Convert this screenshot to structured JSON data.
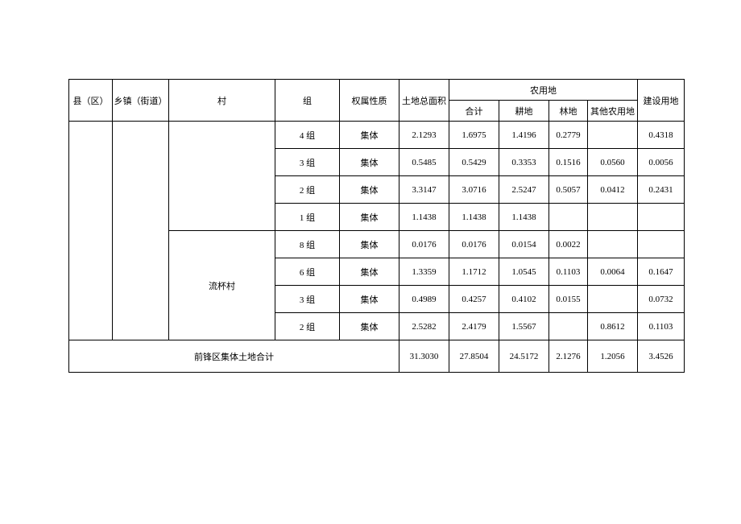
{
  "table": {
    "type": "table",
    "border_color": "#000000",
    "background_color": "#ffffff",
    "text_color": "#000000",
    "font_size": 11,
    "headers": {
      "county": "县（区）",
      "town": "乡镇（街道）",
      "village": "村",
      "group": "组",
      "ownership_nature": "权属性质",
      "total_land_area": "土地总面积",
      "agricultural_land_parent": "农用地",
      "agricultural_subtotal": "合计",
      "farmland": "耕地",
      "forest_land": "林地",
      "other_agricultural": "其他农用地",
      "construction_land": "建设用地"
    },
    "villages": {
      "liubei": "流杯村"
    },
    "rows": [
      {
        "group": "4 组",
        "nature": "集体",
        "total_area": "2.1293",
        "subtotal": "1.6975",
        "farmland": "1.4196",
        "forest": "0.2779",
        "other_ag": "",
        "construction": "0.4318"
      },
      {
        "group": "3 组",
        "nature": "集体",
        "total_area": "0.5485",
        "subtotal": "0.5429",
        "farmland": "0.3353",
        "forest": "0.1516",
        "other_ag": "0.0560",
        "construction": "0.0056"
      },
      {
        "group": "2 组",
        "nature": "集体",
        "total_area": "3.3147",
        "subtotal": "3.0716",
        "farmland": "2.5247",
        "forest": "0.5057",
        "other_ag": "0.0412",
        "construction": "0.2431"
      },
      {
        "group": "1 组",
        "nature": "集体",
        "total_area": "1.1438",
        "subtotal": "1.1438",
        "farmland": "1.1438",
        "forest": "",
        "other_ag": "",
        "construction": ""
      },
      {
        "group": "8 组",
        "nature": "集体",
        "total_area": "0.0176",
        "subtotal": "0.0176",
        "farmland": "0.0154",
        "forest": "0.0022",
        "other_ag": "",
        "construction": ""
      },
      {
        "group": "6 组",
        "nature": "集体",
        "total_area": "1.3359",
        "subtotal": "1.1712",
        "farmland": "1.0545",
        "forest": "0.1103",
        "other_ag": "0.0064",
        "construction": "0.1647"
      },
      {
        "group": "3 组",
        "nature": "集体",
        "total_area": "0.4989",
        "subtotal": "0.4257",
        "farmland": "0.4102",
        "forest": "0.0155",
        "other_ag": "",
        "construction": "0.0732"
      },
      {
        "group": "2 组",
        "nature": "集体",
        "total_area": "2.5282",
        "subtotal": "2.4179",
        "farmland": "1.5567",
        "forest": "",
        "other_ag": "0.8612",
        "construction": "0.1103"
      }
    ],
    "total_row": {
      "label": "前锋区集体土地合计",
      "total_area": "31.3030",
      "subtotal": "27.8504",
      "farmland": "24.5172",
      "forest": "2.1276",
      "other_ag": "1.2056",
      "construction": "3.4526"
    }
  }
}
